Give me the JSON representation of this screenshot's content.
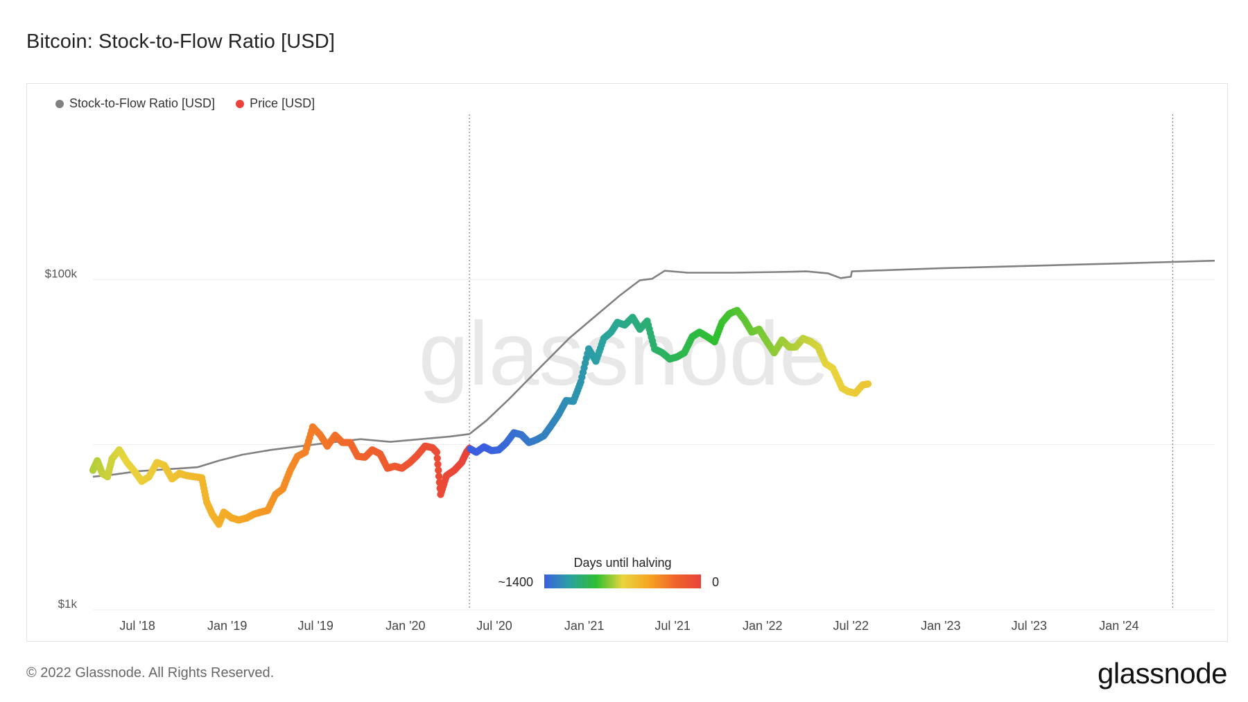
{
  "title": "Bitcoin: Stock-to-Flow Ratio [USD]",
  "footer": "© 2022 Glassnode. All Rights Reserved.",
  "brand": "glassnode",
  "watermark": "glassnode",
  "colors": {
    "s2f_line": "#808080",
    "price_dot": "#e8423a",
    "grid": "#eeeeee",
    "halving_line": "#888888",
    "gradient": [
      "#3b5fe0",
      "#2aa3a0",
      "#2fbf2f",
      "#e9d53d",
      "#f5a623",
      "#f0652a",
      "#e8423a"
    ]
  },
  "legend": [
    {
      "label": "Stock-to-Flow Ratio [USD]",
      "color": "#808080"
    },
    {
      "label": "Price [USD]",
      "color": "#e8423a"
    }
  ],
  "colorbar": {
    "title": "Days until halving",
    "min_label": "~1400",
    "max_label": "0"
  },
  "chart_data": {
    "type": "scatter",
    "y_scale": "log",
    "ylim": [
      1000,
      1000000
    ],
    "y_ticks": [
      {
        "value": 1000,
        "label": "$1k"
      },
      {
        "value": 100000,
        "label": "$100k"
      }
    ],
    "y_gridlines": [
      1000,
      10000,
      100000
    ],
    "xlim": [
      "2018-04-01",
      "2024-07-15"
    ],
    "x_ticks": [
      {
        "date": "2018-07-01",
        "label": "Jul '18"
      },
      {
        "date": "2019-01-01",
        "label": "Jan '19"
      },
      {
        "date": "2019-07-01",
        "label": "Jul '19"
      },
      {
        "date": "2020-01-01",
        "label": "Jan '20"
      },
      {
        "date": "2020-07-01",
        "label": "Jul '20"
      },
      {
        "date": "2021-01-01",
        "label": "Jan '21"
      },
      {
        "date": "2021-07-01",
        "label": "Jul '21"
      },
      {
        "date": "2022-01-01",
        "label": "Jan '22"
      },
      {
        "date": "2022-07-01",
        "label": "Jul '22"
      },
      {
        "date": "2023-01-01",
        "label": "Jan '23"
      },
      {
        "date": "2023-07-01",
        "label": "Jul '23"
      },
      {
        "date": "2024-01-01",
        "label": "Jan '24"
      }
    ],
    "halvings": [
      "2020-05-11",
      "2024-04-20"
    ],
    "series": [
      {
        "name": "Stock-to-Flow Ratio [USD]",
        "kind": "line",
        "points": [
          [
            "2018-04-01",
            6400
          ],
          [
            "2018-05-15",
            6600
          ],
          [
            "2018-07-01",
            6900
          ],
          [
            "2018-09-01",
            7100
          ],
          [
            "2018-11-01",
            7300
          ],
          [
            "2018-12-15",
            8000
          ],
          [
            "2019-02-01",
            8700
          ],
          [
            "2019-04-01",
            9300
          ],
          [
            "2019-06-01",
            9800
          ],
          [
            "2019-08-01",
            10300
          ],
          [
            "2019-10-01",
            10800
          ],
          [
            "2019-12-01",
            10400
          ],
          [
            "2020-02-01",
            10800
          ],
          [
            "2020-04-01",
            11200
          ],
          [
            "2020-05-11",
            11600
          ],
          [
            "2020-06-15",
            14000
          ],
          [
            "2020-08-01",
            19000
          ],
          [
            "2020-10-01",
            29000
          ],
          [
            "2020-12-01",
            44000
          ],
          [
            "2021-02-01",
            63000
          ],
          [
            "2021-03-15",
            80000
          ],
          [
            "2021-04-25",
            99000
          ],
          [
            "2021-05-20",
            101000
          ],
          [
            "2021-06-15",
            113000
          ],
          [
            "2021-08-01",
            110000
          ],
          [
            "2021-11-01",
            110000
          ],
          [
            "2022-02-01",
            111000
          ],
          [
            "2022-04-01",
            112000
          ],
          [
            "2022-05-15",
            109000
          ],
          [
            "2022-06-10",
            102000
          ],
          [
            "2022-07-01",
            104000
          ],
          [
            "2022-07-03",
            112000
          ],
          [
            "2023-01-01",
            117000
          ],
          [
            "2024-01-01",
            125000
          ],
          [
            "2024-07-15",
            130000
          ]
        ]
      },
      {
        "name": "Price [USD]",
        "kind": "scatter",
        "color_by": "Days until halving",
        "points": [
          [
            "2018-04-01",
            7000
          ],
          [
            "2018-04-10",
            8000
          ],
          [
            "2018-04-20",
            6700
          ],
          [
            "2018-05-01",
            6400
          ],
          [
            "2018-05-10",
            8200
          ],
          [
            "2018-05-25",
            9300
          ],
          [
            "2018-06-10",
            7800
          ],
          [
            "2018-06-25",
            6900
          ],
          [
            "2018-07-10",
            6000
          ],
          [
            "2018-07-25",
            6400
          ],
          [
            "2018-08-10",
            7800
          ],
          [
            "2018-08-25",
            7500
          ],
          [
            "2018-09-10",
            6200
          ],
          [
            "2018-09-25",
            6700
          ],
          [
            "2018-10-10",
            6500
          ],
          [
            "2018-10-25",
            6400
          ],
          [
            "2018-11-10",
            6300
          ],
          [
            "2018-11-20",
            4500
          ],
          [
            "2018-12-01",
            3800
          ],
          [
            "2018-12-15",
            3300
          ],
          [
            "2018-12-25",
            3900
          ],
          [
            "2019-01-10",
            3600
          ],
          [
            "2019-01-25",
            3500
          ],
          [
            "2019-02-10",
            3600
          ],
          [
            "2019-02-25",
            3800
          ],
          [
            "2019-03-10",
            3900
          ],
          [
            "2019-03-25",
            4000
          ],
          [
            "2019-04-10",
            5000
          ],
          [
            "2019-04-25",
            5400
          ],
          [
            "2019-05-10",
            7000
          ],
          [
            "2019-05-25",
            8500
          ],
          [
            "2019-06-10",
            9000
          ],
          [
            "2019-06-25",
            12800
          ],
          [
            "2019-07-10",
            11500
          ],
          [
            "2019-07-25",
            9800
          ],
          [
            "2019-08-10",
            11400
          ],
          [
            "2019-08-25",
            10300
          ],
          [
            "2019-09-10",
            10300
          ],
          [
            "2019-09-25",
            8500
          ],
          [
            "2019-10-10",
            8400
          ],
          [
            "2019-10-25",
            9300
          ],
          [
            "2019-11-10",
            8800
          ],
          [
            "2019-11-25",
            7200
          ],
          [
            "2019-12-10",
            7400
          ],
          [
            "2019-12-25",
            7200
          ],
          [
            "2020-01-10",
            7800
          ],
          [
            "2020-01-25",
            8600
          ],
          [
            "2020-02-10",
            9800
          ],
          [
            "2020-02-25",
            9600
          ],
          [
            "2020-03-05",
            9000
          ],
          [
            "2020-03-13",
            5000
          ],
          [
            "2020-03-25",
            6500
          ],
          [
            "2020-04-10",
            7000
          ],
          [
            "2020-04-25",
            7800
          ],
          [
            "2020-05-05",
            9000
          ],
          [
            "2020-05-11",
            9500
          ],
          [
            "2020-05-25",
            9000
          ],
          [
            "2020-06-10",
            9700
          ],
          [
            "2020-06-25",
            9200
          ],
          [
            "2020-07-10",
            9300
          ],
          [
            "2020-07-25",
            10200
          ],
          [
            "2020-08-10",
            11800
          ],
          [
            "2020-08-25",
            11500
          ],
          [
            "2020-09-10",
            10300
          ],
          [
            "2020-09-25",
            10700
          ],
          [
            "2020-10-10",
            11300
          ],
          [
            "2020-10-25",
            13000
          ],
          [
            "2020-11-10",
            15300
          ],
          [
            "2020-11-25",
            18500
          ],
          [
            "2020-12-10",
            18300
          ],
          [
            "2020-12-25",
            24000
          ],
          [
            "2021-01-10",
            38000
          ],
          [
            "2021-01-25",
            32000
          ],
          [
            "2021-02-10",
            44000
          ],
          [
            "2021-02-25",
            48000
          ],
          [
            "2021-03-10",
            55000
          ],
          [
            "2021-03-25",
            53000
          ],
          [
            "2021-04-10",
            59000
          ],
          [
            "2021-04-25",
            50000
          ],
          [
            "2021-05-10",
            56000
          ],
          [
            "2021-05-25",
            38000
          ],
          [
            "2021-06-10",
            36000
          ],
          [
            "2021-06-25",
            33000
          ],
          [
            "2021-07-10",
            34000
          ],
          [
            "2021-07-25",
            36000
          ],
          [
            "2021-08-10",
            45000
          ],
          [
            "2021-08-25",
            48000
          ],
          [
            "2021-09-10",
            45000
          ],
          [
            "2021-09-25",
            42000
          ],
          [
            "2021-10-10",
            55000
          ],
          [
            "2021-10-25",
            62000
          ],
          [
            "2021-11-10",
            65000
          ],
          [
            "2021-11-25",
            57000
          ],
          [
            "2021-12-10",
            48000
          ],
          [
            "2021-12-25",
            50000
          ],
          [
            "2022-01-10",
            42000
          ],
          [
            "2022-01-25",
            36000
          ],
          [
            "2022-02-10",
            43000
          ],
          [
            "2022-02-25",
            39000
          ],
          [
            "2022-03-10",
            39000
          ],
          [
            "2022-03-25",
            44000
          ],
          [
            "2022-04-10",
            42000
          ],
          [
            "2022-04-25",
            39000
          ],
          [
            "2022-05-10",
            31000
          ],
          [
            "2022-05-25",
            29000
          ],
          [
            "2022-06-13",
            22000
          ],
          [
            "2022-06-25",
            21000
          ],
          [
            "2022-07-10",
            20500
          ],
          [
            "2022-07-25",
            23000
          ],
          [
            "2022-08-05",
            23300
          ]
        ]
      }
    ]
  }
}
